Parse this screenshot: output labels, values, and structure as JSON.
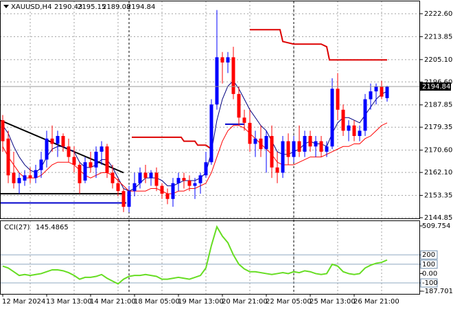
{
  "chart_data": {
    "type": "candlestick",
    "symbol": "XAUUSD,H4",
    "grid": true,
    "bull_color": "#0000ff",
    "bear_color": "#ff0000",
    "categories": [
      "12 Mar 2024",
      null,
      null,
      null,
      null,
      null,
      null,
      null,
      "13 Mar 13:00",
      null,
      null,
      null,
      null,
      null,
      null,
      null,
      "14 Mar 21:00",
      null,
      null,
      null,
      null,
      null,
      null,
      null,
      "18 Mar 05:00",
      null,
      null,
      null,
      null,
      null,
      null,
      null,
      "19 Mar 13:00",
      null,
      null,
      null,
      null,
      null,
      null,
      null,
      "20 Mar 21:00",
      null,
      null,
      null,
      null,
      null,
      null,
      null,
      "22 Mar 05:00",
      null,
      null,
      null,
      null,
      null,
      null,
      null,
      "25 Mar 13:00",
      null,
      null,
      null,
      null,
      null,
      null,
      null,
      "26 Mar 21:00",
      null,
      null,
      null,
      null,
      null,
      null
    ],
    "ohlc": {
      "open": [
        2182,
        2175,
        2162,
        2158,
        2159,
        2161,
        2160,
        2163,
        2167,
        2175,
        2173,
        2176,
        2172,
        2168,
        2165,
        2159,
        2166,
        2164,
        2170,
        2172,
        2162,
        2158,
        2155,
        2149,
        2155,
        2158,
        2162,
        2160,
        2162,
        2157,
        2154,
        2152,
        2158,
        2160,
        2159,
        2157,
        2158,
        2161,
        2166,
        2188,
        2206,
        2204,
        2206,
        2192,
        2183,
        2181,
        2173,
        2175,
        2171,
        2176,
        2164,
        2162,
        2174,
        2168,
        2174,
        2170,
        2176,
        2172,
        2174,
        2170,
        2172,
        2194,
        2186,
        2178,
        2180,
        2176,
        2178,
        2190,
        2193,
        2195,
        2190.43
      ],
      "high": [
        2184,
        2178,
        2170,
        2162,
        2163,
        2164,
        2165,
        2170,
        2178,
        2180,
        2178,
        2177,
        2175,
        2172,
        2166,
        2168,
        2170,
        2172,
        2174,
        2173,
        2165,
        2160,
        2156,
        2157,
        2162,
        2164,
        2165,
        2163,
        2164,
        2158,
        2156,
        2160,
        2162,
        2162,
        2161,
        2160,
        2162,
        2170,
        2190,
        2224,
        2208,
        2208,
        2210,
        2195,
        2186,
        2186,
        2178,
        2180,
        2178,
        2180,
        2170,
        2176,
        2177,
        2176,
        2180,
        2178,
        2178,
        2176,
        2176,
        2174,
        2198,
        2200,
        2188,
        2182,
        2182,
        2180,
        2192,
        2196,
        2196,
        2197,
        2195.15
      ],
      "low": [
        2170,
        2158,
        2156,
        2154,
        2157,
        2158,
        2158,
        2160,
        2164,
        2170,
        2168,
        2170,
        2166,
        2162,
        2154,
        2158,
        2162,
        2160,
        2165,
        2160,
        2156,
        2153,
        2147,
        2147,
        2153,
        2156,
        2158,
        2157,
        2155,
        2152,
        2150,
        2149,
        2155,
        2156,
        2155,
        2152,
        2154,
        2160,
        2165,
        2186,
        2196,
        2200,
        2190,
        2180,
        2178,
        2170,
        2168,
        2168,
        2162,
        2160,
        2158,
        2160,
        2165,
        2166,
        2168,
        2168,
        2170,
        2168,
        2168,
        2168,
        2171,
        2182,
        2176,
        2174,
        2174,
        2174,
        2176,
        2186,
        2188,
        2190,
        2189.08
      ],
      "close": [
        2174,
        2161,
        2158,
        2160,
        2161,
        2160,
        2163,
        2167,
        2175,
        2173,
        2176,
        2172,
        2168,
        2165,
        2158,
        2166,
        2164,
        2170,
        2172,
        2162,
        2158,
        2155,
        2149,
        2155,
        2158,
        2162,
        2160,
        2162,
        2157,
        2154,
        2152,
        2158,
        2160,
        2159,
        2157,
        2158,
        2161,
        2166,
        2188,
        2206,
        2204,
        2206,
        2192,
        2183,
        2181,
        2173,
        2175,
        2171,
        2176,
        2164,
        2162,
        2174,
        2168,
        2174,
        2170,
        2176,
        2172,
        2174,
        2170,
        2172,
        2194,
        2186,
        2178,
        2180,
        2176,
        2178,
        2190,
        2193,
        2195,
        2191,
        2194.84
      ]
    },
    "series": [
      {
        "color": "#000080",
        "values": [
          2180,
          2177,
          2172,
          2168,
          2165,
          2163,
          2162,
          2164,
          2168,
          2171,
          2172,
          2172,
          2171,
          2170,
          2166,
          2164,
          2164,
          2165,
          2167,
          2167,
          2164,
          2160,
          2156,
          2155,
          2156,
          2158,
          2160,
          2160,
          2160,
          2159,
          2157,
          2157,
          2158,
          2159,
          2159,
          2159,
          2160,
          2162,
          2170,
          2182,
          2190,
          2195,
          2197,
          2194,
          2190,
          2186,
          2183,
          2180,
          2178,
          2174,
          2170,
          2169,
          2169,
          2170,
          2171,
          2173,
          2174,
          2173,
          2173,
          2172,
          2177,
          2181,
          2183,
          2183,
          2182,
          2181,
          2184,
          2187,
          2190,
          2192,
          2193
        ]
      },
      {
        "color": "#ff0000",
        "values": [
          2172,
          2168,
          2165,
          2162,
          2160,
          2160,
          2160,
          2161,
          2163,
          2165,
          2166,
          2166,
          2166,
          2165,
          2163,
          2161,
          2160,
          2161,
          2162,
          2162,
          2161,
          2159,
          2157,
          2155,
          2155,
          2155,
          2155,
          2156,
          2156,
          2155,
          2154,
          2154,
          2155,
          2155,
          2156,
          2156,
          2157,
          2158,
          2162,
          2168,
          2174,
          2178,
          2180,
          2180,
          2179,
          2177,
          2175,
          2173,
          2171,
          2169,
          2166,
          2165,
          2165,
          2165,
          2166,
          2167,
          2168,
          2168,
          2168,
          2169,
          2170,
          2171,
          2172,
          2172,
          2173,
          2173,
          2175,
          2176,
          2178,
          2180,
          2181
        ]
      }
    ],
    "overlays": [
      {
        "color": "#000000",
        "width": 2,
        "points": [
          [
            -0.5,
            2182
          ],
          [
            22,
            2162
          ]
        ]
      },
      {
        "color": "#000000",
        "width": 2,
        "points": [
          [
            -0.5,
            2154
          ],
          [
            22,
            2154
          ]
        ]
      },
      {
        "color": "#0000cc",
        "width": 2,
        "points": [
          [
            -0.5,
            2150.5
          ],
          [
            22.5,
            2150.5
          ]
        ]
      },
      {
        "color": "#0000cc",
        "width": 2,
        "points": [
          [
            40.5,
            2180.5
          ],
          [
            44,
            2180.5
          ]
        ]
      },
      {
        "color": "#dd0000",
        "width": 2,
        "points": [
          [
            23.5,
            2175.5
          ],
          [
            32.5,
            2175.5
          ],
          [
            33,
            2174
          ],
          [
            35,
            2174
          ],
          [
            35.5,
            2172.5
          ],
          [
            37,
            2172.5
          ],
          [
            38,
            2171
          ]
        ]
      },
      {
        "color": "#dd0000",
        "width": 2,
        "points": [
          [
            45,
            2216.5
          ],
          [
            50.5,
            2216.5
          ],
          [
            51,
            2212
          ],
          [
            53,
            2211
          ],
          [
            58,
            2211
          ],
          [
            59,
            2210
          ],
          [
            59.5,
            2205
          ],
          [
            70,
            2205
          ]
        ]
      }
    ],
    "ylim": [
      2144.6,
      2227.3
    ],
    "yticks": [
      {
        "value": 2222.6,
        "label": "2222.60"
      },
      {
        "value": 2213.85,
        "label": "2213.85"
      },
      {
        "value": 2205.1,
        "label": "2205.10"
      },
      {
        "value": 2196.6,
        "label": "2196.60"
      },
      {
        "value": 2187.85,
        "label": "2187.85"
      },
      {
        "value": 2179.35,
        "label": "2179.35"
      },
      {
        "value": 2170.6,
        "label": "2170.60"
      },
      {
        "value": 2162.1,
        "label": "2162.10"
      },
      {
        "value": 2153.35,
        "label": "2153.35"
      },
      {
        "value": 2144.85,
        "label": "2144.85"
      }
    ],
    "cci": {
      "name": "CCI(27)",
      "color": "#66dd22",
      "ylim": [
        -217,
        561
      ],
      "yticks": [
        509.754,
        200,
        100,
        {
          "value": 0,
          "label": "0.00"
        },
        -100,
        -187.7012
      ],
      "levels": [
        200,
        100,
        -100
      ],
      "values": [
        80,
        60,
        20,
        -20,
        -10,
        -20,
        -10,
        0,
        20,
        40,
        40,
        30,
        10,
        -20,
        -60,
        -40,
        -40,
        -30,
        -10,
        -50,
        -80,
        -110,
        -60,
        -30,
        -20,
        -20,
        -10,
        -20,
        -30,
        -60,
        -60,
        -50,
        -40,
        -50,
        -60,
        -40,
        -20,
        60,
        300,
        500,
        400,
        330,
        200,
        100,
        50,
        20,
        20,
        10,
        0,
        -10,
        0,
        10,
        0,
        20,
        10,
        30,
        20,
        0,
        -10,
        0,
        100,
        80,
        20,
        0,
        -10,
        0,
        60,
        90,
        110,
        120,
        145.4865
      ]
    }
  }
}
